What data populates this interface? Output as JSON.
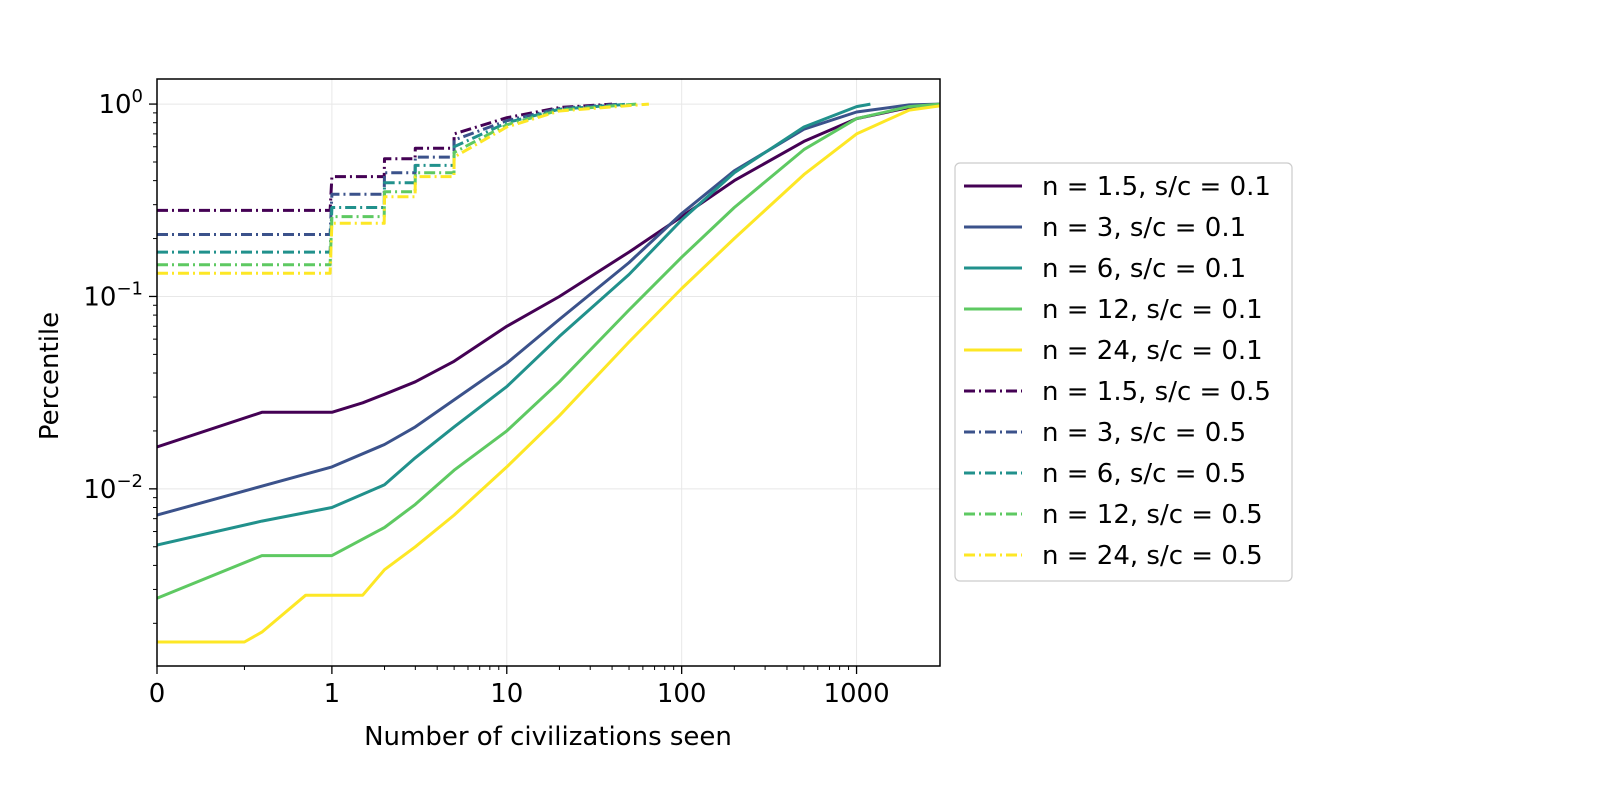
{
  "chart_data": {
    "type": "line",
    "xlabel": "Number of civilizations seen",
    "ylabel": "Percentile",
    "x_scale": "symlog",
    "y_scale": "log",
    "xlim": [
      0,
      3000
    ],
    "ylim": [
      0.0012,
      1.35
    ],
    "grid": true,
    "legend_position": "outside-right",
    "x_ticks": [
      {
        "value": 0,
        "label": "0"
      },
      {
        "value": 1,
        "label": "1"
      },
      {
        "value": 10,
        "label": "10"
      },
      {
        "value": 100,
        "label": "100"
      },
      {
        "value": 1000,
        "label": "1000"
      }
    ],
    "y_ticks": [
      {
        "value": 0.01,
        "base": "10",
        "exp": "−2"
      },
      {
        "value": 0.1,
        "base": "10",
        "exp": "−1"
      },
      {
        "value": 1,
        "base": "10",
        "exp": "0"
      }
    ],
    "series": [
      {
        "name": "n = 1.5, s/c = 0.1",
        "color": "#440154",
        "dash": "solid",
        "x": [
          0,
          0.6,
          1,
          1.5,
          2,
          3,
          5,
          10,
          20,
          50,
          100,
          200,
          500,
          1000,
          2000,
          3000
        ],
        "y": [
          0.0165,
          0.025,
          0.025,
          0.028,
          0.031,
          0.036,
          0.046,
          0.07,
          0.1,
          0.17,
          0.26,
          0.4,
          0.64,
          0.84,
          0.96,
          1.0
        ]
      },
      {
        "name": "n = 3, s/c = 0.1",
        "color": "#3b528b",
        "dash": "solid",
        "x": [
          0,
          1,
          2,
          3,
          5,
          10,
          20,
          50,
          100,
          200,
          500,
          1000,
          2000,
          3000
        ],
        "y": [
          0.0073,
          0.013,
          0.017,
          0.021,
          0.029,
          0.045,
          0.076,
          0.15,
          0.27,
          0.45,
          0.74,
          0.91,
          0.99,
          1.0
        ]
      },
      {
        "name": "n = 6, s/c = 0.1",
        "color": "#21918c",
        "dash": "solid",
        "x": [
          0,
          0.6,
          1,
          2,
          3,
          5,
          10,
          20,
          50,
          100,
          200,
          500,
          1000,
          1200
        ],
        "y": [
          0.0051,
          0.0068,
          0.008,
          0.0105,
          0.0145,
          0.021,
          0.034,
          0.062,
          0.13,
          0.25,
          0.44,
          0.76,
          0.97,
          1.0
        ]
      },
      {
        "name": "n = 12, s/c = 0.1",
        "color": "#5ec962",
        "dash": "solid",
        "x": [
          0,
          0.6,
          1,
          2,
          3,
          5,
          10,
          20,
          50,
          100,
          200,
          500,
          1000,
          2000,
          3000
        ],
        "y": [
          0.0027,
          0.0045,
          0.0045,
          0.0063,
          0.0083,
          0.0125,
          0.02,
          0.036,
          0.085,
          0.16,
          0.29,
          0.58,
          0.84,
          0.97,
          1.0
        ]
      },
      {
        "name": "n = 24, s/c = 0.1",
        "color": "#fde725",
        "dash": "solid",
        "x": [
          0,
          0.5,
          0.6,
          0.85,
          1,
          1.5,
          2,
          3,
          5,
          10,
          20,
          50,
          100,
          200,
          500,
          1000,
          2000,
          3000
        ],
        "y": [
          0.0016,
          0.0016,
          0.0018,
          0.0028,
          0.0028,
          0.0028,
          0.0038,
          0.005,
          0.0073,
          0.013,
          0.024,
          0.058,
          0.11,
          0.2,
          0.43,
          0.7,
          0.93,
          0.98
        ]
      },
      {
        "name": "n = 1.5, s/c = 0.5",
        "color": "#440154",
        "dash": "dashdot",
        "x": [
          0,
          0.99,
          1,
          1.99,
          2,
          2.99,
          3,
          4.99,
          5,
          10,
          20,
          40
        ],
        "y": [
          0.28,
          0.28,
          0.42,
          0.42,
          0.52,
          0.52,
          0.59,
          0.59,
          0.7,
          0.85,
          0.96,
          1.0
        ]
      },
      {
        "name": "n = 3, s/c = 0.5",
        "color": "#3b528b",
        "dash": "dashdot",
        "x": [
          0,
          0.99,
          1,
          1.99,
          2,
          2.99,
          3,
          4.99,
          5,
          10,
          20,
          45
        ],
        "y": [
          0.21,
          0.21,
          0.34,
          0.34,
          0.44,
          0.44,
          0.53,
          0.53,
          0.65,
          0.82,
          0.95,
          1.0
        ]
      },
      {
        "name": "n = 6, s/c = 0.5",
        "color": "#21918c",
        "dash": "dashdot",
        "x": [
          0,
          0.99,
          1,
          1.99,
          2,
          2.99,
          3,
          4.99,
          5,
          10,
          20,
          50
        ],
        "y": [
          0.17,
          0.17,
          0.29,
          0.29,
          0.39,
          0.39,
          0.48,
          0.48,
          0.6,
          0.8,
          0.94,
          1.0
        ]
      },
      {
        "name": "n = 12, s/c = 0.5",
        "color": "#5ec962",
        "dash": "dashdot",
        "x": [
          0,
          0.99,
          1,
          1.99,
          2,
          2.99,
          3,
          4.99,
          5,
          10,
          20,
          55
        ],
        "y": [
          0.146,
          0.146,
          0.26,
          0.26,
          0.35,
          0.35,
          0.44,
          0.44,
          0.56,
          0.78,
          0.93,
          1.0
        ]
      },
      {
        "name": "n = 24, s/c = 0.5",
        "color": "#fde725",
        "dash": "dashdot",
        "x": [
          0,
          0.99,
          1,
          1.99,
          2,
          2.99,
          3,
          4.99,
          5,
          10,
          20,
          65
        ],
        "y": [
          0.132,
          0.132,
          0.24,
          0.24,
          0.33,
          0.33,
          0.42,
          0.42,
          0.53,
          0.76,
          0.92,
          1.0
        ]
      }
    ]
  }
}
